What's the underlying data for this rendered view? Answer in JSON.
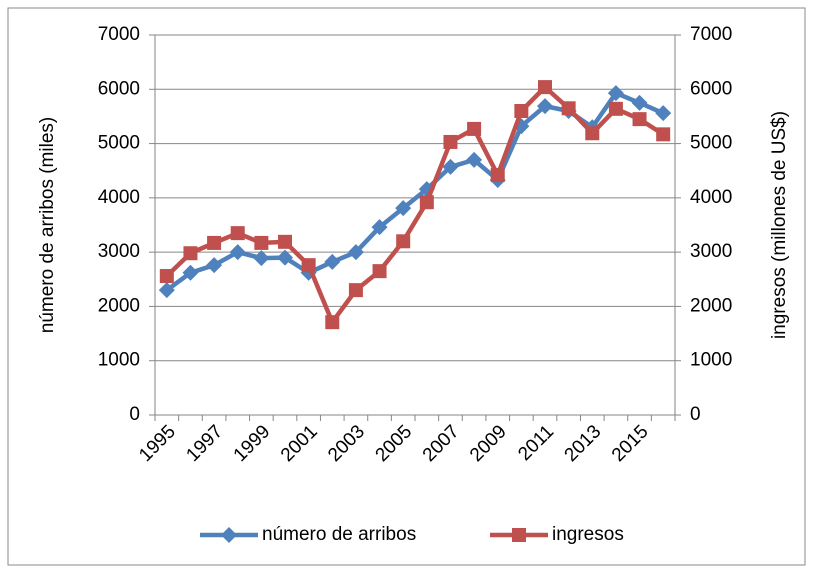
{
  "chart_data": {
    "type": "line",
    "categories": [
      "1995",
      null,
      "1997",
      null,
      "1999",
      null,
      "2001",
      null,
      "2003",
      null,
      "2005",
      null,
      "2007",
      null,
      "2009",
      null,
      "2011",
      null,
      "2013",
      null,
      "2015",
      null
    ],
    "ylabel": "número de arribos (miles)",
    "y2label": "ingresos (millones de US$)",
    "ylim": [
      0,
      7000
    ],
    "yticks": [
      0,
      1000,
      2000,
      3000,
      4000,
      5000,
      6000,
      7000
    ],
    "y2lim": [
      0,
      7000
    ],
    "y2ticks": [
      0,
      1000,
      2000,
      3000,
      4000,
      5000,
      6000,
      7000
    ],
    "grid": true,
    "legend": "bottom",
    "series": [
      {
        "name": "número de arribos",
        "color": "#4f81bd",
        "marker": "diamond",
        "values": [
          2300,
          2620,
          2760,
          3000,
          2890,
          2900,
          2620,
          2820,
          3000,
          3460,
          3810,
          4160,
          4570,
          4700,
          4330,
          5320,
          5690,
          5600,
          5300,
          5930,
          5750,
          5560
        ]
      },
      {
        "name": "ingresos",
        "color": "#c0504d",
        "marker": "square",
        "axis": "y2",
        "values": [
          2560,
          2980,
          3170,
          3350,
          3170,
          3190,
          2760,
          1710,
          2300,
          2650,
          3200,
          3920,
          5030,
          5270,
          4420,
          5600,
          6040,
          5650,
          5190,
          5640,
          5450,
          5170
        ]
      }
    ]
  }
}
